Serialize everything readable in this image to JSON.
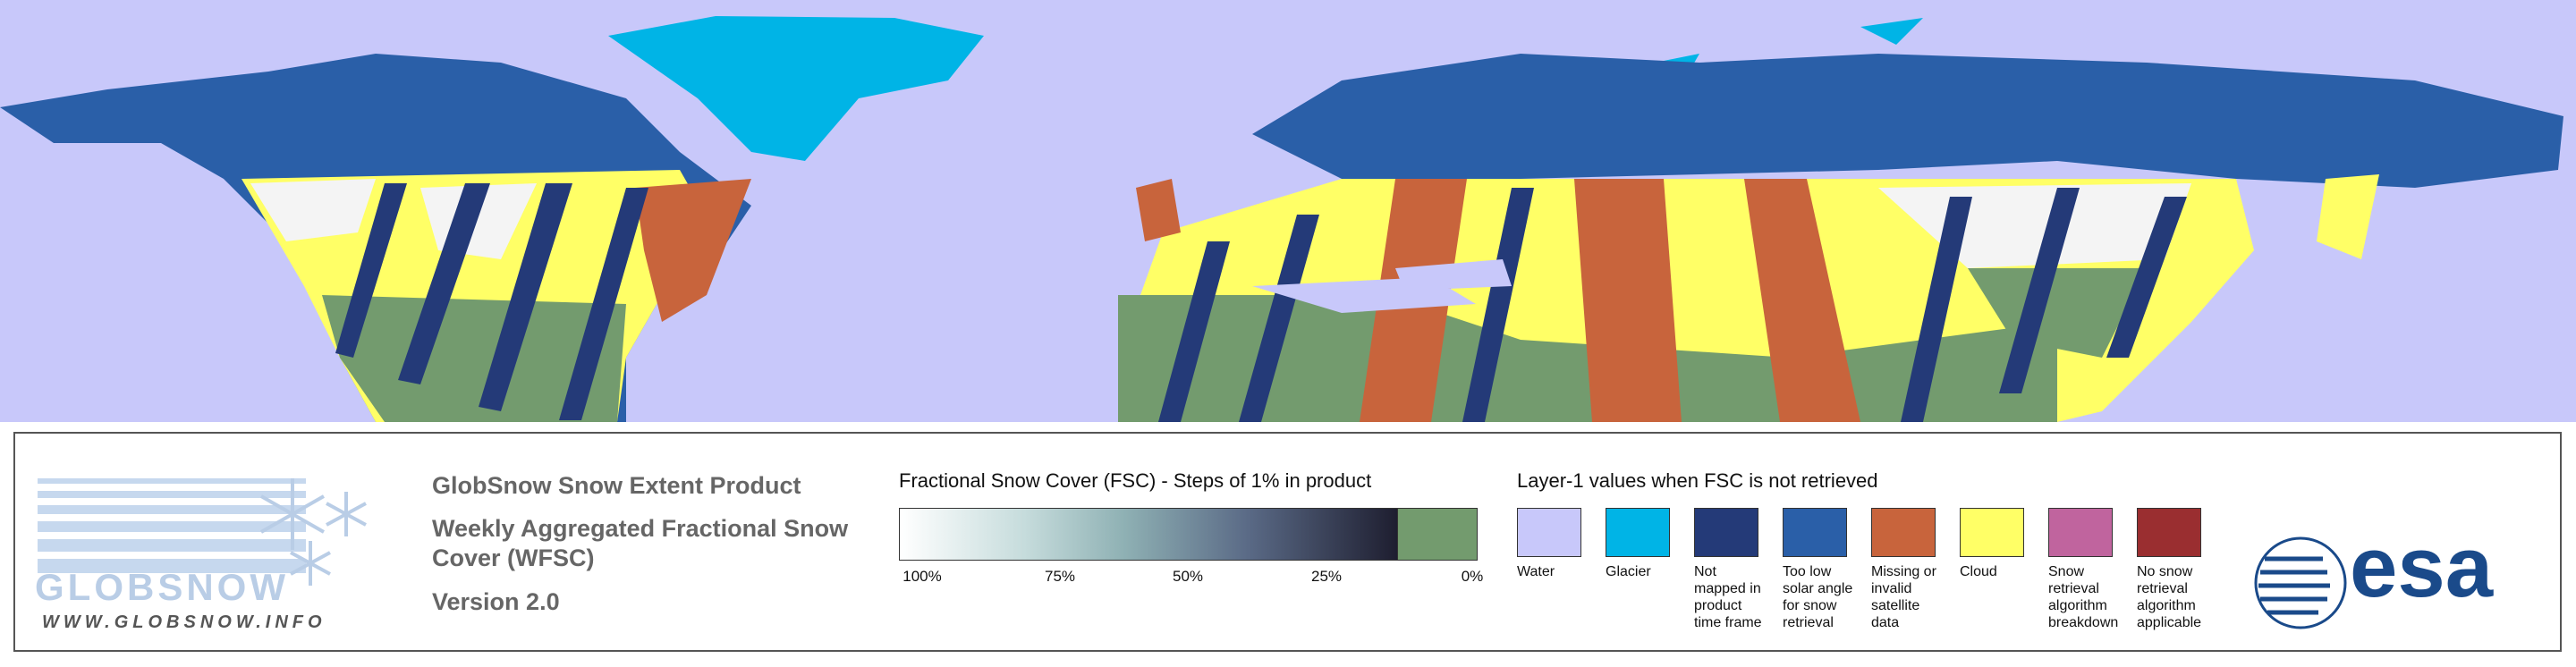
{
  "logo": {
    "name": "GLOBSNOW",
    "url": "WWW.GLOBSNOW.INFO"
  },
  "product": {
    "title": "GlobSnow Snow Extent Product",
    "subtitle": "Weekly Aggregated Fractional Snow Cover (WFSC)",
    "version": "Version 2.0"
  },
  "fsc_scale": {
    "title": "Fractional Snow Cover (FSC) - Steps of 1% in product",
    "labels": [
      "100%",
      "75%",
      "50%",
      "25%",
      "0%"
    ]
  },
  "layer1": {
    "title": "Layer-1 values when FSC is not retrieved",
    "classes": [
      {
        "label": "Water",
        "color": "#c8c8fa"
      },
      {
        "label": "Glacier",
        "color": "#00b4e6"
      },
      {
        "label": "Not mapped in product time frame",
        "color": "#243a78"
      },
      {
        "label": "Too low solar angle for snow retrieval",
        "color": "#2a5fa8"
      },
      {
        "label": "Missing or invalid satellite data",
        "color": "#c8643c"
      },
      {
        "label": "Cloud",
        "color": "#ffff66"
      },
      {
        "label": "Snow retrieval algorithm breakdown",
        "color": "#c0649e"
      },
      {
        "label": "No snow retrieval algorithm applicable",
        "color": "#9a2e30"
      }
    ]
  },
  "esa_logo": "esa"
}
